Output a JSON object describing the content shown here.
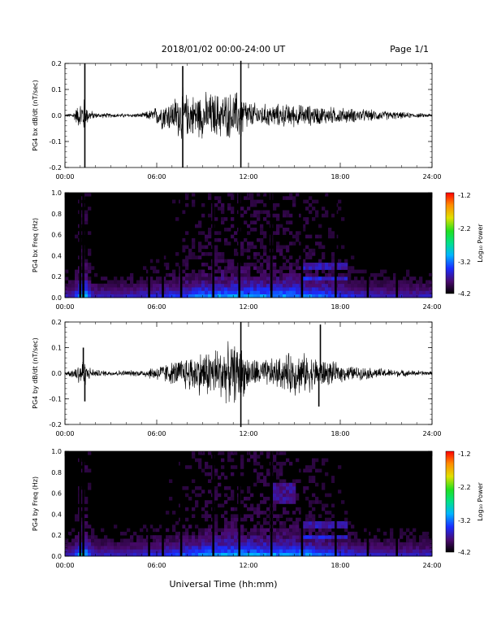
{
  "header": {
    "title": "2018/01/02  00:00-24:00 UT",
    "page": "Page 1/1"
  },
  "footer": {
    "xlabel": "Universal Time (hh:mm)"
  },
  "colorbar": {
    "label": "Log₁₀ Power",
    "ticks": [
      "-1.2",
      "-2.2",
      "-3.2",
      "-4.2"
    ],
    "range": [
      -4.2,
      -1.2
    ]
  },
  "chart_data": [
    {
      "type": "line",
      "ylabel": "PG4 bx dB/dt (nT/sec)",
      "ylim": [
        -0.2,
        0.2
      ],
      "yticks": [
        "0.2",
        "0.1",
        "0.0",
        "-0.1",
        "-0.2"
      ],
      "xlim": [
        "00:00",
        "24:00"
      ],
      "xticks": [
        "00:00",
        "06:00",
        "12:00",
        "18:00",
        "24:00"
      ],
      "envelope": {
        "hours": [
          0,
          0.5,
          1.0,
          1.2,
          1.5,
          2,
          3,
          4,
          5,
          5.8,
          6.3,
          7,
          7.7,
          8,
          9,
          10,
          11,
          11.5,
          12,
          13,
          14,
          15,
          16,
          17,
          18,
          19,
          20,
          21,
          22,
          23,
          24
        ],
        "amplitude": [
          0.005,
          0.012,
          0.06,
          0.09,
          0.03,
          0.012,
          0.01,
          0.008,
          0.01,
          0.03,
          0.06,
          0.07,
          0.12,
          0.09,
          0.1,
          0.1,
          0.1,
          0.12,
          0.06,
          0.05,
          0.05,
          0.05,
          0.045,
          0.04,
          0.035,
          0.03,
          0.025,
          0.02,
          0.015,
          0.01,
          0.008
        ]
      },
      "spikes": [
        {
          "t": 1.3,
          "v": 0.2
        },
        {
          "t": 1.3,
          "v": -0.2
        },
        {
          "t": 7.7,
          "v": 0.19
        },
        {
          "t": 7.7,
          "v": -0.2
        },
        {
          "t": 11.5,
          "v": 0.21
        },
        {
          "t": 11.5,
          "v": -0.2
        }
      ]
    },
    {
      "type": "heatmap",
      "ylabel": "PG4 bx Freq (Hz)",
      "ylim": [
        0.0,
        1.0
      ],
      "yticks": [
        "1.0",
        "0.8",
        "0.6",
        "0.4",
        "0.2",
        "0.0"
      ],
      "xlim": [
        "00:00",
        "24:00"
      ],
      "xticks": [
        "00:00",
        "06:00",
        "12:00",
        "18:00",
        "24:00"
      ],
      "value_range": [
        -4.2,
        -1.2
      ],
      "data_gaps_hours": [
        1.0,
        1.2,
        5.5,
        6.4,
        7.6,
        9.7,
        11.4,
        13.5,
        15.5,
        17.7,
        19.8,
        21.7
      ]
    },
    {
      "type": "line",
      "ylabel": "PG4 by dB/dt (nT/sec)",
      "ylim": [
        -0.2,
        0.2
      ],
      "yticks": [
        "0.2",
        "0.1",
        "0.0",
        "-0.1",
        "-0.2"
      ],
      "xlim": [
        "00:00",
        "24:00"
      ],
      "xticks": [
        "00:00",
        "06:00",
        "12:00",
        "18:00",
        "24:00"
      ],
      "envelope": {
        "hours": [
          0,
          0.5,
          1.0,
          1.2,
          1.5,
          2,
          3,
          4,
          5,
          5.8,
          6.3,
          7,
          7.7,
          8,
          9,
          10,
          11,
          11.5,
          12,
          13,
          14,
          15,
          16,
          17,
          18,
          19,
          20,
          21,
          22,
          23,
          24
        ],
        "amplitude": [
          0.008,
          0.02,
          0.06,
          0.07,
          0.03,
          0.015,
          0.012,
          0.012,
          0.015,
          0.03,
          0.04,
          0.05,
          0.07,
          0.08,
          0.1,
          0.12,
          0.13,
          0.12,
          0.07,
          0.06,
          0.07,
          0.1,
          0.08,
          0.06,
          0.04,
          0.03,
          0.025,
          0.02,
          0.015,
          0.012,
          0.008
        ]
      },
      "spikes": [
        {
          "t": 1.2,
          "v": 0.1
        },
        {
          "t": 1.3,
          "v": -0.11
        },
        {
          "t": 11.5,
          "v": 0.2
        },
        {
          "t": 11.5,
          "v": -0.21
        },
        {
          "t": 16.7,
          "v": 0.19
        },
        {
          "t": 16.6,
          "v": -0.13
        }
      ]
    },
    {
      "type": "heatmap",
      "ylabel": "PG4 by Freq (Hz)",
      "ylim": [
        0.0,
        1.0
      ],
      "yticks": [
        "1.0",
        "0.8",
        "0.6",
        "0.4",
        "0.2",
        "0.0"
      ],
      "xlim": [
        "00:00",
        "24:00"
      ],
      "xticks": [
        "00:00",
        "06:00",
        "12:00",
        "18:00",
        "24:00"
      ],
      "value_range": [
        -4.2,
        -1.2
      ],
      "data_gaps_hours": [
        1.0,
        1.2,
        5.5,
        6.4,
        7.6,
        9.7,
        11.4,
        13.5,
        15.5,
        17.7,
        19.8,
        21.7
      ]
    }
  ]
}
